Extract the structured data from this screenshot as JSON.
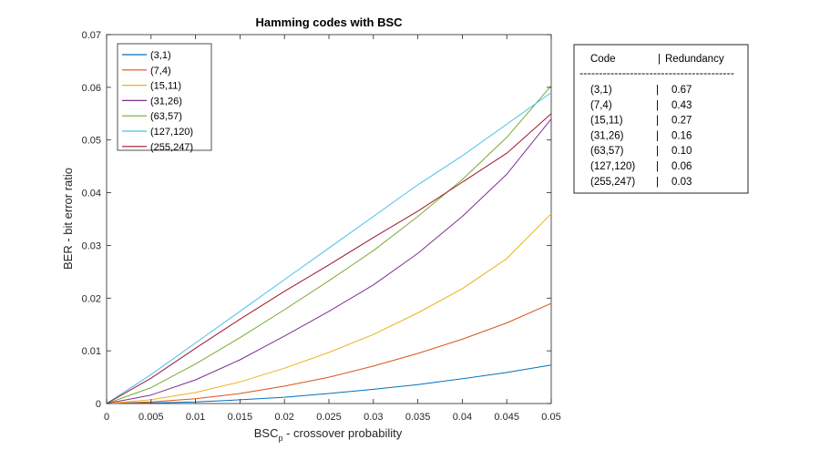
{
  "chart_data": {
    "type": "line",
    "title": "Hamming codes with BSC",
    "xlabel_main": "BSC",
    "xlabel_sub": "p",
    "xlabel_rest": " - crossover probability",
    "ylabel": "BER - bit error ratio",
    "xlim": [
      0,
      0.05
    ],
    "ylim": [
      0,
      0.07
    ],
    "xticks": [
      "0",
      "0.005",
      "0.01",
      "0.015",
      "0.02",
      "0.025",
      "0.03",
      "0.035",
      "0.04",
      "0.045",
      "0.05"
    ],
    "yticks": [
      "0",
      "0.01",
      "0.02",
      "0.03",
      "0.04",
      "0.05",
      "0.06",
      "0.07"
    ],
    "grid": false,
    "legend_position": "top-left",
    "series": [
      {
        "name": "(3,1)",
        "color": "#0072BD",
        "x": [
          0,
          0.005,
          0.01,
          0.015,
          0.02,
          0.025,
          0.03,
          0.035,
          0.04,
          0.045,
          0.05
        ],
        "y": [
          0,
          0.0001,
          0.0003,
          0.0007,
          0.0012,
          0.0019,
          0.0027,
          0.0036,
          0.0047,
          0.0059,
          0.0073
        ]
      },
      {
        "name": "(7,4)",
        "color": "#D95319",
        "x": [
          0,
          0.005,
          0.01,
          0.015,
          0.02,
          0.025,
          0.03,
          0.035,
          0.04,
          0.045,
          0.05
        ],
        "y": [
          0,
          0.0003,
          0.0009,
          0.0019,
          0.0033,
          0.005,
          0.0071,
          0.0095,
          0.0122,
          0.0153,
          0.019
        ]
      },
      {
        "name": "(15,11)",
        "color": "#EDB120",
        "x": [
          0,
          0.005,
          0.01,
          0.015,
          0.02,
          0.025,
          0.03,
          0.035,
          0.04,
          0.045,
          0.05
        ],
        "y": [
          0,
          0.0007,
          0.0021,
          0.0041,
          0.0067,
          0.0097,
          0.0131,
          0.0172,
          0.0218,
          0.0275,
          0.036
        ]
      },
      {
        "name": "(31,26)",
        "color": "#7E2F8E",
        "x": [
          0,
          0.005,
          0.01,
          0.015,
          0.02,
          0.025,
          0.03,
          0.035,
          0.04,
          0.045,
          0.05
        ],
        "y": [
          0,
          0.0016,
          0.0045,
          0.0083,
          0.0128,
          0.0175,
          0.0225,
          0.0285,
          0.0355,
          0.0435,
          0.054
        ]
      },
      {
        "name": "(63,57)",
        "color": "#77AC30",
        "x": [
          0,
          0.005,
          0.01,
          0.015,
          0.02,
          0.025,
          0.03,
          0.035,
          0.04,
          0.045,
          0.05
        ],
        "y": [
          0,
          0.003,
          0.0075,
          0.0125,
          0.0178,
          0.0233,
          0.029,
          0.0355,
          0.0425,
          0.0505,
          0.0603
        ]
      },
      {
        "name": "(127,120)",
        "color": "#4DBEEE",
        "x": [
          0,
          0.005,
          0.01,
          0.015,
          0.02,
          0.025,
          0.03,
          0.035,
          0.04,
          0.045,
          0.05
        ],
        "y": [
          0,
          0.0055,
          0.0115,
          0.0175,
          0.0235,
          0.0295,
          0.0355,
          0.0415,
          0.047,
          0.053,
          0.059
        ]
      },
      {
        "name": "(255,247)",
        "color": "#A2142F",
        "x": [
          0,
          0.005,
          0.01,
          0.015,
          0.02,
          0.025,
          0.03,
          0.035,
          0.04,
          0.045,
          0.05
        ],
        "y": [
          0,
          0.0048,
          0.0105,
          0.016,
          0.0213,
          0.0263,
          0.0315,
          0.0365,
          0.042,
          0.0475,
          0.055
        ]
      }
    ]
  },
  "redundancy_table": {
    "header_code": "Code",
    "header_sep": "|",
    "header_redundancy": "Redundancy",
    "divider": "----------------------------------------",
    "rows": [
      {
        "code": "(3,1)",
        "sep": "|",
        "value": "0.67"
      },
      {
        "code": "(7,4)",
        "sep": "|",
        "value": "0.43"
      },
      {
        "code": "(15,11)",
        "sep": "|",
        "value": "0.27"
      },
      {
        "code": "(31,26)",
        "sep": "|",
        "value": "0.16"
      },
      {
        "code": "(63,57)",
        "sep": "|",
        "value": "0.10"
      },
      {
        "code": "(127,120)",
        "sep": "|",
        "value": "0.06"
      },
      {
        "code": "(255,247)",
        "sep": "|",
        "value": "0.03"
      }
    ]
  }
}
